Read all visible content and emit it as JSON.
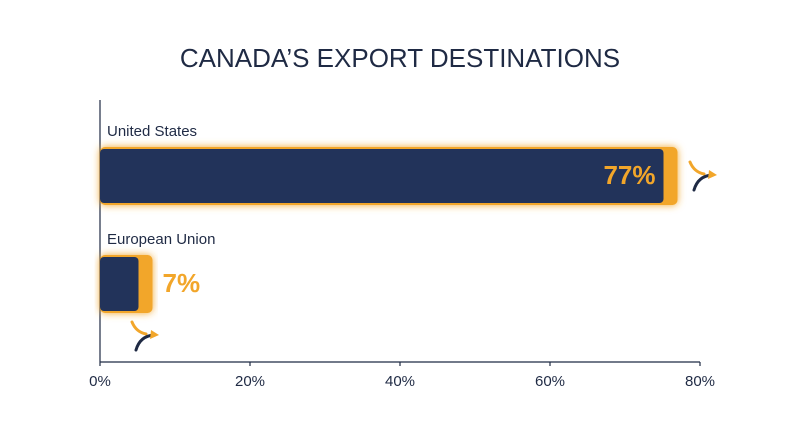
{
  "chart_data": {
    "type": "bar",
    "orientation": "horizontal",
    "title": "CANADA’S EXPORT DESTINATIONS",
    "categories": [
      "United States",
      "European Union"
    ],
    "values": [
      77,
      7
    ],
    "value_labels": [
      "77%",
      "7%"
    ],
    "color": "#f2a62a",
    "xlim": [
      0,
      80
    ],
    "xticks": [
      {
        "value": 0,
        "label": "0%"
      },
      {
        "value": 20,
        "label": "20%"
      },
      {
        "value": 40,
        "label": "40%"
      },
      {
        "value": 60,
        "label": "60%"
      },
      {
        "value": 80,
        "label": "80%"
      }
    ],
    "grid": false
  }
}
